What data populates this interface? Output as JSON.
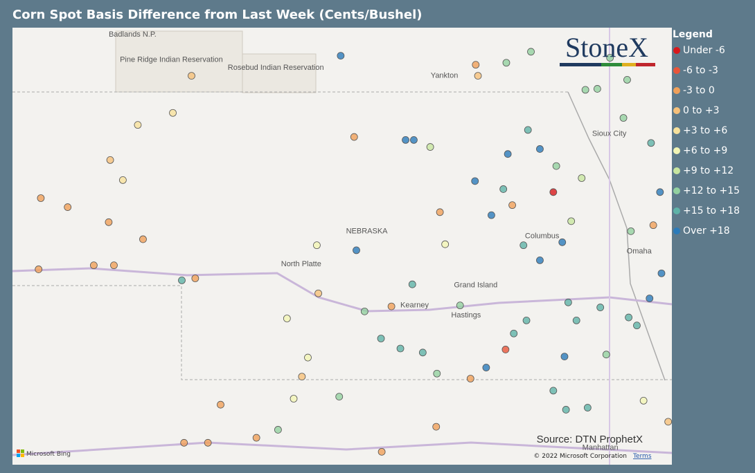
{
  "title": "Corn Spot Basis Difference from Last Week (Cents/Bushel)",
  "legend": {
    "title": "Legend",
    "items": [
      {
        "label": "Under -6",
        "color": "#d7191c"
      },
      {
        "label": "-6 to -3",
        "color": "#e8553a"
      },
      {
        "label": "-3 to 0",
        "color": "#f0a05a"
      },
      {
        "label": "0 to +3",
        "color": "#f6c07a"
      },
      {
        "label": "+3 to +6",
        "color": "#f7e19c"
      },
      {
        "label": "+6 to +9",
        "color": "#f2f5b5"
      },
      {
        "label": "+9 to +12",
        "color": "#c8e6a0"
      },
      {
        "label": "+12 to +15",
        "color": "#93d1a0"
      },
      {
        "label": "+15 to +18",
        "color": "#5fb3a8"
      },
      {
        "label": "Over +18",
        "color": "#2b7bba"
      }
    ]
  },
  "logo": "StoneX",
  "source": "Source: DTN ProphetX",
  "copyright": "© 2022 Microsoft Corporation",
  "terms": "Terms",
  "provider": "Microsoft Bing",
  "places": [
    {
      "name": "NEBRASKA",
      "lon": -99.57,
      "lat": 41.52
    },
    {
      "name": "North Platte",
      "lon": -100.45,
      "lat": 41.19
    },
    {
      "name": "Grand Island",
      "lon": -98.11,
      "lat": 40.98
    },
    {
      "name": "Kearney",
      "lon": -98.93,
      "lat": 40.78
    },
    {
      "name": "Hastings",
      "lon": -98.24,
      "lat": 40.68
    },
    {
      "name": "Columbus",
      "lon": -97.22,
      "lat": 41.47
    },
    {
      "name": "Omaha",
      "lon": -95.92,
      "lat": 41.32
    },
    {
      "name": "Sioux City",
      "lon": -96.32,
      "lat": 42.49
    },
    {
      "name": "Yankton",
      "lon": -98.53,
      "lat": 43.07
    },
    {
      "name": "Badlands N.P.",
      "lon": -102.71,
      "lat": 43.48
    },
    {
      "name": "Pine Ridge Indian Reservation",
      "lon": -102.19,
      "lat": 43.23
    },
    {
      "name": "Rosebud Indian Reservation",
      "lon": -100.79,
      "lat": 43.15
    },
    {
      "name": "Manhattan",
      "lon": -96.44,
      "lat": 39.36
    }
  ],
  "points": [
    [
      -103.58,
      41.78,
      2
    ],
    [
      -103.03,
      41.63,
      2
    ],
    [
      -102.57,
      41.46,
      2
    ],
    [
      -102.96,
      41.2,
      2
    ],
    [
      -103.94,
      41.87,
      2
    ],
    [
      -103.01,
      42.25,
      3
    ],
    [
      -102.64,
      42.6,
      4
    ],
    [
      -102.17,
      42.72,
      4
    ],
    [
      -101.92,
      43.09,
      3
    ],
    [
      -102.84,
      42.05,
      4
    ],
    [
      -102.05,
      41.05,
      8
    ],
    [
      -101.87,
      41.07,
      2
    ],
    [
      -100.22,
      40.92,
      3
    ],
    [
      -99.92,
      43.29,
      9
    ],
    [
      -99.74,
      42.48,
      2
    ],
    [
      -99.05,
      42.45,
      9
    ],
    [
      -98.94,
      42.45,
      9
    ],
    [
      -98.72,
      42.38,
      6
    ],
    [
      -99.71,
      41.35,
      9
    ],
    [
      -100.24,
      41.4,
      5
    ],
    [
      -98.96,
      41.01,
      8
    ],
    [
      -99.24,
      40.79,
      2
    ],
    [
      -99.6,
      40.74,
      7
    ],
    [
      -99.38,
      40.47,
      8
    ],
    [
      -99.12,
      40.37,
      8
    ],
    [
      -98.82,
      40.33,
      8
    ],
    [
      -98.63,
      40.12,
      7
    ],
    [
      -98.18,
      40.07,
      2
    ],
    [
      -97.97,
      40.18,
      9
    ],
    [
      -97.71,
      40.36,
      1
    ],
    [
      -98.12,
      42.04,
      9
    ],
    [
      -97.9,
      41.7,
      9
    ],
    [
      -97.74,
      41.96,
      8
    ],
    [
      -97.68,
      42.31,
      9
    ],
    [
      -97.41,
      42.55,
      8
    ],
    [
      -97.25,
      42.36,
      9
    ],
    [
      -97.03,
      42.19,
      7
    ],
    [
      -97.07,
      41.93,
      0
    ],
    [
      -96.95,
      41.43,
      9
    ],
    [
      -97.47,
      41.4,
      8
    ],
    [
      -97.25,
      41.25,
      9
    ],
    [
      -96.87,
      40.83,
      8
    ],
    [
      -96.44,
      40.78,
      8
    ],
    [
      -96.06,
      40.68,
      8
    ],
    [
      -96.36,
      40.31,
      7
    ],
    [
      -96.92,
      40.29,
      9
    ],
    [
      -96.61,
      39.78,
      8
    ],
    [
      -97.07,
      39.95,
      8
    ],
    [
      -96.9,
      39.76,
      8
    ],
    [
      -96.13,
      42.67,
      7
    ],
    [
      -96.48,
      42.96,
      7
    ],
    [
      -96.08,
      43.05,
      7
    ],
    [
      -96.31,
      43.27,
      7
    ],
    [
      -95.76,
      42.42,
      8
    ],
    [
      -95.64,
      41.93,
      9
    ],
    [
      -95.73,
      41.6,
      2
    ],
    [
      -96.03,
      41.54,
      7
    ],
    [
      -95.78,
      40.87,
      9
    ],
    [
      -95.62,
      41.12,
      9
    ],
    [
      -95.95,
      40.6,
      8
    ],
    [
      -95.86,
      39.85,
      5
    ],
    [
      -95.53,
      39.64,
      3
    ],
    [
      -98.08,
      43.09,
      3
    ],
    [
      -98.11,
      43.2,
      2
    ],
    [
      -97.7,
      43.22,
      7
    ],
    [
      -97.37,
      43.33,
      7
    ],
    [
      -101.53,
      39.81,
      2
    ],
    [
      -100.55,
      39.87,
      5
    ],
    [
      -99.94,
      39.89,
      7
    ],
    [
      -100.76,
      39.56,
      7
    ],
    [
      -102.02,
      39.43,
      2
    ],
    [
      -101.7,
      39.43,
      2
    ],
    [
      -101.05,
      39.48,
      2
    ],
    [
      -98.64,
      39.59,
      2
    ],
    [
      -99.37,
      39.34,
      2
    ],
    [
      -98.52,
      41.41,
      5
    ],
    [
      -98.59,
      41.73,
      2
    ],
    [
      -100.44,
      40.09,
      3
    ],
    [
      -100.64,
      40.67,
      5
    ],
    [
      -100.36,
      40.28,
      5
    ],
    [
      -103.23,
      41.2,
      2
    ],
    [
      -103.97,
      41.16,
      2
    ],
    [
      -96.76,
      40.65,
      8
    ],
    [
      -97.43,
      40.65,
      8
    ],
    [
      -97.6,
      40.52,
      8
    ],
    [
      -96.64,
      42.95,
      7
    ],
    [
      -96.69,
      42.07,
      6
    ],
    [
      -96.83,
      41.64,
      6
    ],
    [
      -97.62,
      41.8,
      2
    ],
    [
      -98.32,
      40.8,
      7
    ]
  ]
}
